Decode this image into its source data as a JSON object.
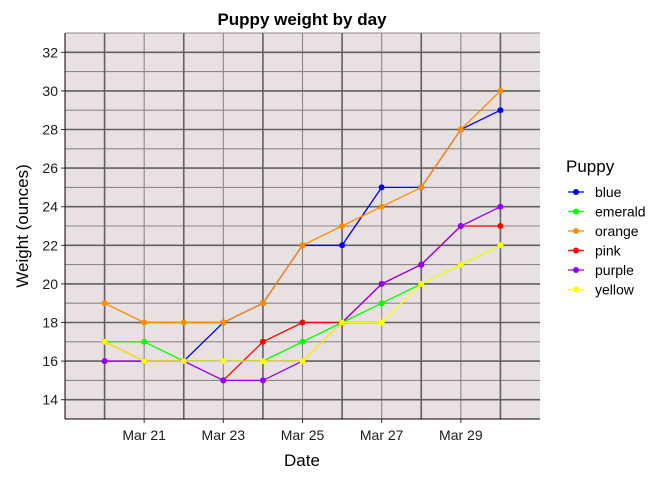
{
  "chart_data": {
    "type": "line",
    "title": "Puppy weight by day",
    "xlabel": "Date",
    "ylabel": "Weight (ounces)",
    "x": [
      "2021-03-20",
      "2021-03-21",
      "2021-03-22",
      "2021-03-23",
      "2021-03-24",
      "2021-03-25",
      "2021-03-26",
      "2021-03-27",
      "2021-03-28",
      "2021-03-29",
      "2021-03-30"
    ],
    "x_tick_labels": [
      {
        "date": "2021-03-21",
        "label": "Mar 21"
      },
      {
        "date": "2021-03-23",
        "label": "Mar 23"
      },
      {
        "date": "2021-03-25",
        "label": "Mar 25"
      },
      {
        "date": "2021-03-27",
        "label": "Mar 27"
      },
      {
        "date": "2021-03-29",
        "label": "Mar 29"
      }
    ],
    "xlim": [
      "2021-03-19",
      "2021-03-31"
    ],
    "y_ticks": [
      14,
      16,
      18,
      20,
      22,
      24,
      26,
      28,
      30,
      32
    ],
    "ylim": [
      13,
      33
    ],
    "grid": true,
    "legend_title": "Puppy",
    "legend_position": "right",
    "series": [
      {
        "name": "blue",
        "color": "#0000ff",
        "values": [
          17,
          16,
          16,
          18,
          19,
          22,
          22,
          25,
          25,
          28,
          29
        ]
      },
      {
        "name": "emerald",
        "color": "#00ff00",
        "values": [
          17,
          17,
          16,
          16,
          16,
          17,
          18,
          19,
          20,
          21,
          22
        ]
      },
      {
        "name": "orange",
        "color": "#ff8c00",
        "values": [
          19,
          18,
          18,
          18,
          19,
          22,
          23,
          24,
          25,
          28,
          30
        ]
      },
      {
        "name": "pink",
        "color": "#ff0000",
        "values": [
          17,
          16,
          16,
          15,
          17,
          18,
          18,
          20,
          21,
          23,
          23
        ]
      },
      {
        "name": "purple",
        "color": "#9400ff",
        "values": [
          16,
          16,
          16,
          15,
          15,
          16,
          18,
          20,
          21,
          23,
          24
        ]
      },
      {
        "name": "yellow",
        "color": "#ffff00",
        "values": [
          17,
          16,
          16,
          16,
          16,
          16,
          18,
          18,
          20,
          21,
          22
        ]
      }
    ]
  },
  "colors": {
    "panel_background": "#e9e1e1",
    "major_grid": "#616161",
    "minor_grid": "#8c8888"
  }
}
